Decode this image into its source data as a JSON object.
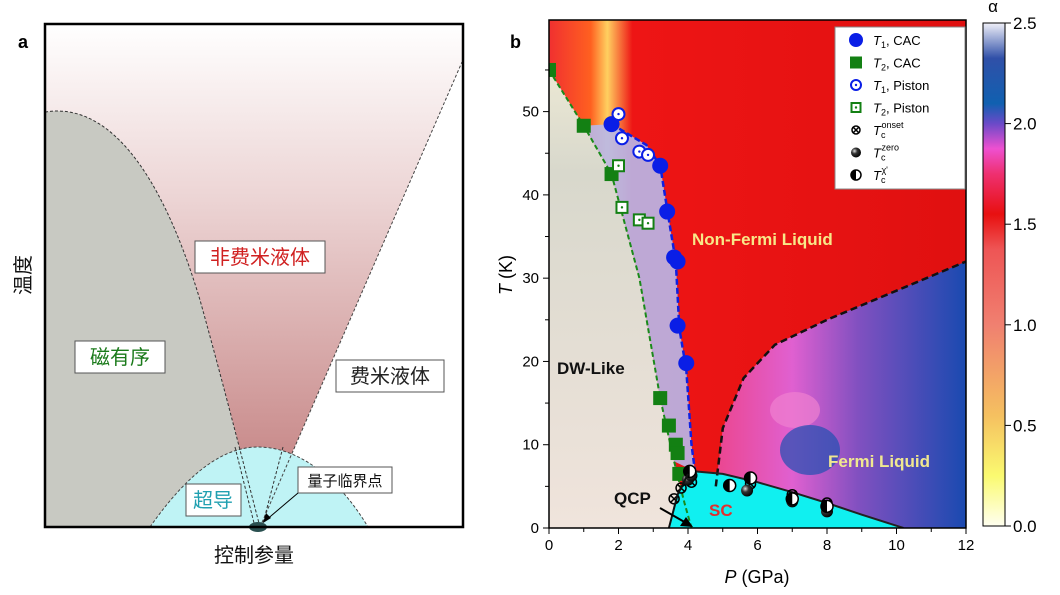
{
  "chart_data": [
    {
      "type": "diagram",
      "panel_label": "a",
      "ylabel": "温度",
      "xlabel": "控制参量",
      "regions": {
        "non_fermi_liquid": "非费米液体",
        "magnetic_order": "磁有序",
        "fermi_liquid": "费米液体",
        "superconductivity": "超导"
      },
      "annotation": "量子临界点",
      "colors": {
        "magnetic": "#c9c9c2",
        "nfl": "#c98a8a",
        "sc": "#bff4f4",
        "nfl_label": "#d02020",
        "mag_label": "#1a7a1a",
        "sc_label": "#20a0b0"
      }
    },
    {
      "type": "scatter",
      "panel_label": "b",
      "xlabel_italic": "P",
      "xlabel_rest": " (GPa)",
      "ylabel_italic": "T",
      "ylabel_rest": " (K)",
      "xlim": [
        0,
        12
      ],
      "ylim": [
        0,
        61
      ],
      "xticks": [
        0,
        2,
        4,
        6,
        8,
        10,
        12
      ],
      "yticks": [
        0,
        10,
        20,
        30,
        40,
        50
      ],
      "region_labels": {
        "nfl": "Non-Fermi Liquid",
        "dw": "DW-Like",
        "fl": "Fermi Liquid",
        "sc": "SC",
        "qcp": "QCP"
      },
      "colorbar": {
        "label": "α",
        "range": [
          0,
          2.5
        ],
        "ticks": [
          "0.0",
          "0.5",
          "1.0",
          "1.5",
          "2.0",
          "2.5"
        ]
      },
      "legend_position": "top-right",
      "series": [
        {
          "name": "T1, CAC",
          "sym": "T",
          "sub": "1",
          "rest": ", CAC",
          "marker": "filled-circle",
          "color": "#0a1ee6",
          "points": [
            [
              1.8,
              48.5
            ],
            [
              3.2,
              43.5
            ],
            [
              3.4,
              38
            ],
            [
              3.6,
              32.5
            ],
            [
              3.7,
              32
            ],
            [
              3.7,
              24.3
            ],
            [
              3.95,
              19.8
            ]
          ]
        },
        {
          "name": "T2, CAC",
          "sym": "T",
          "sub": "2",
          "rest": ", CAC",
          "marker": "filled-square",
          "color": "#138013",
          "points": [
            [
              0,
              55
            ],
            [
              1,
              48.3
            ],
            [
              1.8,
              42.5
            ],
            [
              3.2,
              15.6
            ],
            [
              3.45,
              12.3
            ],
            [
              3.65,
              10
            ],
            [
              3.7,
              9
            ],
            [
              3.75,
              6.5
            ]
          ]
        },
        {
          "name": "T1, Piston",
          "sym": "T",
          "sub": "1",
          "rest": ", Piston",
          "marker": "open-circle-dot",
          "color": "#0a1ee6",
          "points": [
            [
              2.0,
              49.7
            ],
            [
              2.1,
              46.8
            ],
            [
              2.6,
              45.2
            ],
            [
              2.85,
              44.8
            ]
          ]
        },
        {
          "name": "T2, Piston",
          "sym": "T",
          "sub": "2",
          "rest": ", Piston",
          "marker": "open-square-dot",
          "color": "#138013",
          "points": [
            [
              2.0,
              43.5
            ],
            [
              2.1,
              38.5
            ],
            [
              2.6,
              37
            ],
            [
              2.85,
              36.6
            ]
          ]
        },
        {
          "name": "Tc onset",
          "sym": "T",
          "sub": "c",
          "sup": "onset",
          "marker": "crossed-circle",
          "color": "#000000",
          "points": [
            [
              3.6,
              3.5
            ],
            [
              3.8,
              4.8
            ],
            [
              4.1,
              5.5
            ],
            [
              5.8,
              5.3
            ],
            [
              7.0,
              4.0
            ],
            [
              8.0,
              3.0
            ]
          ]
        },
        {
          "name": "Tc zero",
          "sym": "T",
          "sub": "c",
          "sup": "zero",
          "marker": "filled-ball",
          "color": "#000000",
          "points": [
            [
              4.0,
              5.8
            ],
            [
              4.1,
              6.3
            ],
            [
              5.7,
              4.5
            ],
            [
              7.0,
              3.2
            ],
            [
              8.0,
              2.0
            ]
          ]
        },
        {
          "name": "Tc chi'",
          "sym": "T",
          "sub": "c",
          "sup": "χ'",
          "marker": "half-circle",
          "color": "#000000",
          "points": [
            [
              4.05,
              6.8
            ],
            [
              5.2,
              5.1
            ],
            [
              5.8,
              6.0
            ],
            [
              7.0,
              3.5
            ],
            [
              8.0,
              2.6
            ]
          ]
        }
      ],
      "boundaries": {
        "t2_line": [
          [
            0,
            55
          ],
          [
            1,
            48.3
          ],
          [
            1.8,
            42.5
          ],
          [
            2.6,
            30
          ],
          [
            3.2,
            15.6
          ],
          [
            3.6,
            8
          ],
          [
            3.9,
            3
          ],
          [
            4.1,
            0
          ]
        ],
        "t1_line": [
          [
            1.8,
            48.5
          ],
          [
            2.8,
            46
          ],
          [
            3.2,
            43.5
          ],
          [
            3.45,
            37
          ],
          [
            3.65,
            32
          ],
          [
            3.75,
            24
          ],
          [
            3.95,
            19
          ],
          [
            4.1,
            10
          ],
          [
            4.2,
            6.8
          ]
        ],
        "fl_crossover": [
          [
            4.8,
            5
          ],
          [
            5.0,
            12
          ],
          [
            5.6,
            18
          ],
          [
            6.5,
            22
          ],
          [
            8,
            25
          ],
          [
            10,
            28.5
          ],
          [
            12,
            32
          ]
        ],
        "sc_dome": [
          [
            3.45,
            0
          ],
          [
            3.6,
            3
          ],
          [
            3.9,
            6
          ],
          [
            4.2,
            6.8
          ],
          [
            5,
            6.5
          ],
          [
            6,
            5.5
          ],
          [
            7,
            4.3
          ],
          [
            8,
            3
          ],
          [
            9,
            1.6
          ],
          [
            10.2,
            0
          ]
        ]
      }
    }
  ]
}
